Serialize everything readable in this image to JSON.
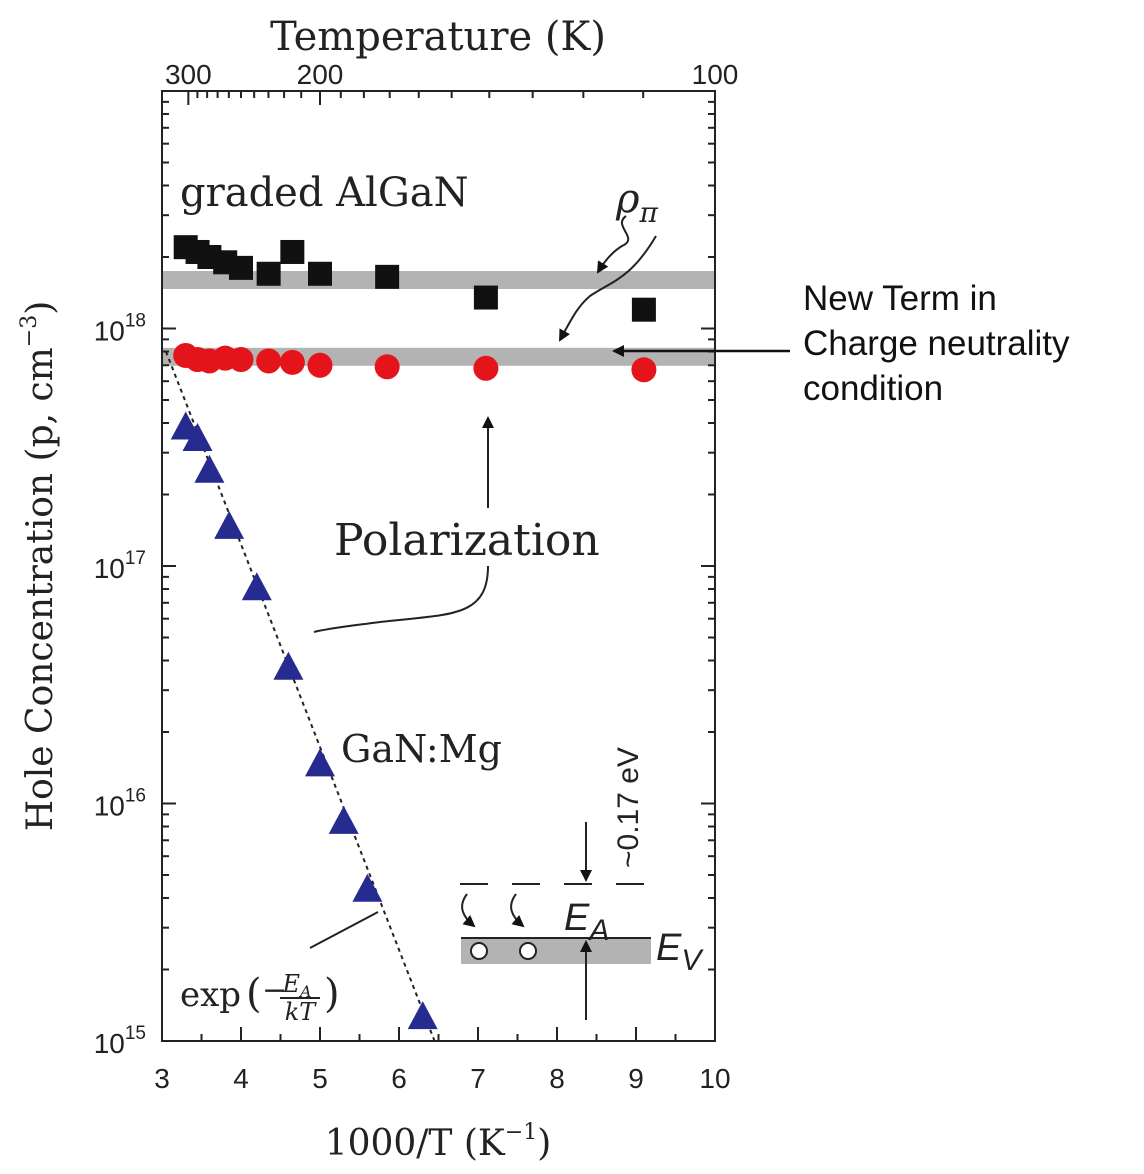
{
  "chart_data": {
    "type": "scatter",
    "xlabel": "1000/T (K",
    "xlabel_sup": "−1",
    "xlabel_end": ")",
    "ylabel": "Hole Concentration (p, cm",
    "ylabel_sup": "−3",
    "ylabel_end": ")",
    "top_axis_label": "Temperature (K)",
    "xlim": [
      3,
      10
    ],
    "ylim": [
      1000000000000000.0,
      1e+19
    ],
    "yscale": "log",
    "x_ticks": [
      "3",
      "4",
      "5",
      "6",
      "7",
      "8",
      "9",
      "10"
    ],
    "x_tick_values": [
      3,
      4,
      5,
      6,
      7,
      8,
      9,
      10
    ],
    "y_ticks": [
      {
        "value": 1000000000000000.0,
        "base": "10",
        "exp": "15"
      },
      {
        "value": 1e+16,
        "base": "10",
        "exp": "16"
      },
      {
        "value": 1e+17,
        "base": "10",
        "exp": "17"
      },
      {
        "value": 1e+18,
        "base": "10",
        "exp": "18"
      }
    ],
    "top_ticks": [
      {
        "label": "300",
        "temperature": 300
      },
      {
        "label": "200",
        "temperature": 200
      },
      {
        "label": "100",
        "temperature": 100
      }
    ],
    "series": [
      {
        "name": "graded AlGaN",
        "marker": "square",
        "color": "#111111",
        "x": [
          3.3,
          3.45,
          3.6,
          3.8,
          4.0,
          4.35,
          4.65,
          5.0,
          5.85,
          7.1,
          9.1
        ],
        "y": [
          2.2e+18,
          2.1e+18,
          2e+18,
          1.9e+18,
          1.8e+18,
          1.7e+18,
          2.1e+18,
          1.7e+18,
          1.65e+18,
          1.35e+18,
          1.2e+18
        ]
      },
      {
        "name": "",
        "marker": "circle",
        "color": "#e5141b",
        "x": [
          3.3,
          3.45,
          3.6,
          3.8,
          4.0,
          4.35,
          4.65,
          5.0,
          5.85,
          7.1,
          9.1
        ],
        "y": [
          7.7e+17,
          7.4e+17,
          7.3e+17,
          7.5e+17,
          7.4e+17,
          7.3e+17,
          7.2e+17,
          7e+17,
          6.9e+17,
          6.8e+17,
          6.7e+17
        ]
      },
      {
        "name": "GaN:Mg",
        "marker": "triangle",
        "color": "#252b8f",
        "x": [
          3.3,
          3.45,
          3.6,
          3.85,
          4.2,
          4.6,
          5.0,
          5.3,
          5.6,
          6.3
        ],
        "y": [
          3.8e+17,
          3.4e+17,
          2.5e+17,
          1.45e+17,
          8e+16,
          3.7e+16,
          1.45e+16,
          8300000000000000.0,
          4300000000000000.0,
          1250000000000000.0
        ]
      }
    ],
    "bands": [
      {
        "y": 1.6e+18,
        "color": "#b3b3b3"
      },
      {
        "y": 7.6e+17,
        "color": "#b3b3b3"
      }
    ],
    "fit_line": {
      "x": [
        3.05,
        6.45
      ],
      "y": [
        8e+17,
        1000000000000000.0
      ]
    },
    "annotations": {
      "graded": "graded AlGaN",
      "rho_main": "ρ",
      "rho_sub": "π",
      "polarization": "Polarization",
      "ganmg": "GaN:Mg",
      "exp_prefix": "exp",
      "exp_sign": "−",
      "exp_num": "E",
      "exp_num_sub": "A",
      "exp_den": "kT",
      "energy": "~0.17 eV",
      "ea_main": "E",
      "ea_sub": "A",
      "ev_main": "E",
      "ev_sub": "V"
    }
  },
  "callout": {
    "lines": [
      "New Term in",
      "Charge neutrality",
      "condition"
    ]
  }
}
